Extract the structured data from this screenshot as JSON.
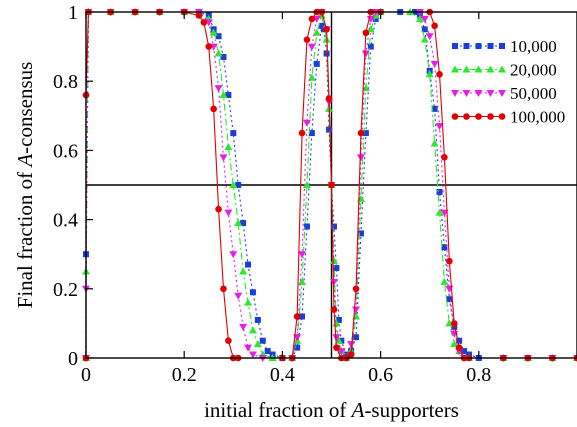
{
  "chart_data": {
    "type": "line",
    "title": "",
    "xlabel": {
      "before": "initial fraction of ",
      "italic": "A",
      "after": "-supporters"
    },
    "ylabel": {
      "before": "Final fraction of ",
      "italic": "A",
      "after": "-consensus"
    },
    "xlim": [
      0,
      1
    ],
    "ylim": [
      0,
      1
    ],
    "xticks": [
      0,
      0.2,
      0.4,
      0.6,
      0.8
    ],
    "xtick_labels": [
      "0",
      "0.2",
      "0.4",
      "0.6",
      "0.8"
    ],
    "yticks": [
      0,
      0.2,
      0.4,
      0.6,
      0.8,
      1
    ],
    "ytick_labels": [
      "0",
      "0.2",
      "0.4",
      "0.6",
      "0.8",
      "1"
    ],
    "grid": false,
    "legend_position": "top-right",
    "reference_lines": [
      {
        "orientation": "horizontal",
        "value": 0.5
      },
      {
        "orientation": "vertical",
        "value": 0.5
      }
    ],
    "series": [
      {
        "name": "10,000",
        "color": "#1a3fd6",
        "marker": "square",
        "dash": "2,3",
        "points": [
          [
            0,
            0
          ],
          [
            0,
            0.3
          ],
          [
            0.005,
            1
          ],
          [
            0.05,
            1
          ],
          [
            0.1,
            1
          ],
          [
            0.15,
            1
          ],
          [
            0.2,
            1
          ],
          [
            0.23,
            1
          ],
          [
            0.25,
            0.99
          ],
          [
            0.26,
            0.95
          ],
          [
            0.27,
            0.93
          ],
          [
            0.28,
            0.87
          ],
          [
            0.29,
            0.76
          ],
          [
            0.3,
            0.65
          ],
          [
            0.31,
            0.5
          ],
          [
            0.32,
            0.39
          ],
          [
            0.33,
            0.27
          ],
          [
            0.34,
            0.19
          ],
          [
            0.35,
            0.11
          ],
          [
            0.36,
            0.05
          ],
          [
            0.37,
            0.02
          ],
          [
            0.38,
            0.01
          ],
          [
            0.4,
            0
          ],
          [
            0.42,
            0
          ],
          [
            0.43,
            0.03
          ],
          [
            0.44,
            0.12
          ],
          [
            0.45,
            0.38
          ],
          [
            0.46,
            0.65
          ],
          [
            0.47,
            0.85
          ],
          [
            0.48,
            0.96
          ],
          [
            0.485,
            0.95
          ],
          [
            0.49,
            0.88
          ],
          [
            0.495,
            0.66
          ],
          [
            0.5,
            0.5
          ],
          [
            0.505,
            0.38
          ],
          [
            0.51,
            0.26
          ],
          [
            0.515,
            0.11
          ],
          [
            0.52,
            0.05
          ],
          [
            0.53,
            0.01
          ],
          [
            0.54,
            0.02
          ],
          [
            0.55,
            0.06
          ],
          [
            0.56,
            0.36
          ],
          [
            0.57,
            0.65
          ],
          [
            0.58,
            0.9
          ],
          [
            0.59,
            0.98
          ],
          [
            0.6,
            1
          ],
          [
            0.64,
            1
          ],
          [
            0.67,
            1
          ],
          [
            0.68,
            0.99
          ],
          [
            0.69,
            0.95
          ],
          [
            0.7,
            0.83
          ],
          [
            0.71,
            0.72
          ],
          [
            0.72,
            0.48
          ],
          [
            0.73,
            0.32
          ],
          [
            0.74,
            0.17
          ],
          [
            0.75,
            0.09
          ],
          [
            0.76,
            0.05
          ],
          [
            0.77,
            0.02
          ],
          [
            0.78,
            0.01
          ],
          [
            0.8,
            0
          ],
          [
            0.85,
            0
          ],
          [
            0.9,
            0
          ],
          [
            0.95,
            0
          ],
          [
            1,
            0
          ]
        ]
      },
      {
        "name": "20,000",
        "color": "#2ee62e",
        "marker": "triangle-up",
        "dash": "7,3,2,3",
        "points": [
          [
            0,
            0
          ],
          [
            0,
            0.25
          ],
          [
            0.005,
            1
          ],
          [
            0.05,
            1
          ],
          [
            0.1,
            1
          ],
          [
            0.15,
            1
          ],
          [
            0.2,
            1
          ],
          [
            0.23,
            1
          ],
          [
            0.25,
            0.98
          ],
          [
            0.26,
            0.94
          ],
          [
            0.27,
            0.88
          ],
          [
            0.28,
            0.76
          ],
          [
            0.29,
            0.61
          ],
          [
            0.3,
            0.5
          ],
          [
            0.31,
            0.39
          ],
          [
            0.32,
            0.25
          ],
          [
            0.33,
            0.16
          ],
          [
            0.34,
            0.08
          ],
          [
            0.35,
            0.04
          ],
          [
            0.36,
            0.01
          ],
          [
            0.38,
            0
          ],
          [
            0.42,
            0
          ],
          [
            0.43,
            0.05
          ],
          [
            0.44,
            0.22
          ],
          [
            0.45,
            0.5
          ],
          [
            0.46,
            0.81
          ],
          [
            0.47,
            0.94
          ],
          [
            0.48,
            0.99
          ],
          [
            0.49,
            0.92
          ],
          [
            0.495,
            0.72
          ],
          [
            0.5,
            0.5
          ],
          [
            0.505,
            0.28
          ],
          [
            0.51,
            0.1
          ],
          [
            0.515,
            0.05
          ],
          [
            0.52,
            0.02
          ],
          [
            0.53,
            0
          ],
          [
            0.54,
            0.02
          ],
          [
            0.55,
            0.12
          ],
          [
            0.56,
            0.46
          ],
          [
            0.57,
            0.78
          ],
          [
            0.58,
            0.95
          ],
          [
            0.59,
            0.99
          ],
          [
            0.6,
            1
          ],
          [
            0.66,
            1
          ],
          [
            0.68,
            0.98
          ],
          [
            0.69,
            0.92
          ],
          [
            0.7,
            0.82
          ],
          [
            0.71,
            0.62
          ],
          [
            0.72,
            0.42
          ],
          [
            0.73,
            0.22
          ],
          [
            0.74,
            0.1
          ],
          [
            0.75,
            0.04
          ],
          [
            0.76,
            0.02
          ],
          [
            0.78,
            0
          ],
          [
            0.85,
            0
          ],
          [
            0.9,
            0
          ],
          [
            0.95,
            0
          ],
          [
            1,
            0
          ]
        ]
      },
      {
        "name": "50,000",
        "color": "#e61ee6",
        "marker": "triangle-down",
        "dash": "2,3",
        "points": [
          [
            0,
            0
          ],
          [
            0,
            0.2
          ],
          [
            0.005,
            1
          ],
          [
            0.05,
            1
          ],
          [
            0.1,
            1
          ],
          [
            0.15,
            1
          ],
          [
            0.2,
            1
          ],
          [
            0.23,
            1
          ],
          [
            0.25,
            0.97
          ],
          [
            0.26,
            0.9
          ],
          [
            0.27,
            0.78
          ],
          [
            0.28,
            0.58
          ],
          [
            0.29,
            0.42
          ],
          [
            0.3,
            0.3
          ],
          [
            0.31,
            0.18
          ],
          [
            0.32,
            0.09
          ],
          [
            0.33,
            0.03
          ],
          [
            0.34,
            0.01
          ],
          [
            0.36,
            0
          ],
          [
            0.42,
            0
          ],
          [
            0.43,
            0.06
          ],
          [
            0.44,
            0.3
          ],
          [
            0.45,
            0.68
          ],
          [
            0.46,
            0.9
          ],
          [
            0.47,
            0.98
          ],
          [
            0.48,
            1
          ],
          [
            0.49,
            0.95
          ],
          [
            0.495,
            0.74
          ],
          [
            0.5,
            0.5
          ],
          [
            0.505,
            0.22
          ],
          [
            0.51,
            0.06
          ],
          [
            0.52,
            0.02
          ],
          [
            0.53,
            0
          ],
          [
            0.54,
            0.04
          ],
          [
            0.55,
            0.14
          ],
          [
            0.56,
            0.58
          ],
          [
            0.57,
            0.88
          ],
          [
            0.58,
            0.98
          ],
          [
            0.59,
            1
          ],
          [
            0.68,
            1
          ],
          [
            0.69,
            0.98
          ],
          [
            0.7,
            0.93
          ],
          [
            0.71,
            0.85
          ],
          [
            0.72,
            0.67
          ],
          [
            0.73,
            0.42
          ],
          [
            0.74,
            0.2
          ],
          [
            0.75,
            0.07
          ],
          [
            0.76,
            0.02
          ],
          [
            0.77,
            0
          ],
          [
            0.85,
            0
          ],
          [
            0.9,
            0
          ],
          [
            0.95,
            0
          ],
          [
            1,
            0
          ]
        ]
      },
      {
        "name": "100,000",
        "color": "#e00000",
        "marker": "circle",
        "dash": "",
        "points": [
          [
            0,
            0
          ],
          [
            0,
            0.76
          ],
          [
            0.005,
            1
          ],
          [
            0.05,
            1
          ],
          [
            0.1,
            1
          ],
          [
            0.15,
            1
          ],
          [
            0.2,
            1
          ],
          [
            0.23,
            0.99
          ],
          [
            0.24,
            0.97
          ],
          [
            0.25,
            0.9
          ],
          [
            0.26,
            0.72
          ],
          [
            0.27,
            0.43
          ],
          [
            0.28,
            0.2
          ],
          [
            0.29,
            0.05
          ],
          [
            0.3,
            0
          ],
          [
            0.31,
            0
          ],
          [
            0.4,
            0
          ],
          [
            0.42,
            0
          ],
          [
            0.43,
            0.12
          ],
          [
            0.44,
            0.65
          ],
          [
            0.45,
            0.92
          ],
          [
            0.46,
            0.98
          ],
          [
            0.47,
            1
          ],
          [
            0.48,
            1
          ],
          [
            0.49,
            0.95
          ],
          [
            0.495,
            0.75
          ],
          [
            0.5,
            0.5
          ],
          [
            0.505,
            0.14
          ],
          [
            0.51,
            0.03
          ],
          [
            0.52,
            0
          ],
          [
            0.53,
            0
          ],
          [
            0.54,
            0.01
          ],
          [
            0.55,
            0.2
          ],
          [
            0.56,
            0.65
          ],
          [
            0.57,
            0.94
          ],
          [
            0.58,
            1
          ],
          [
            0.6,
            1
          ],
          [
            0.7,
            1
          ],
          [
            0.71,
            0.96
          ],
          [
            0.72,
            0.82
          ],
          [
            0.73,
            0.58
          ],
          [
            0.74,
            0.28
          ],
          [
            0.75,
            0.1
          ],
          [
            0.76,
            0.03
          ],
          [
            0.77,
            0
          ],
          [
            0.78,
            0
          ],
          [
            0.85,
            0
          ],
          [
            0.9,
            0
          ],
          [
            0.95,
            0
          ],
          [
            1,
            0
          ]
        ]
      }
    ]
  }
}
